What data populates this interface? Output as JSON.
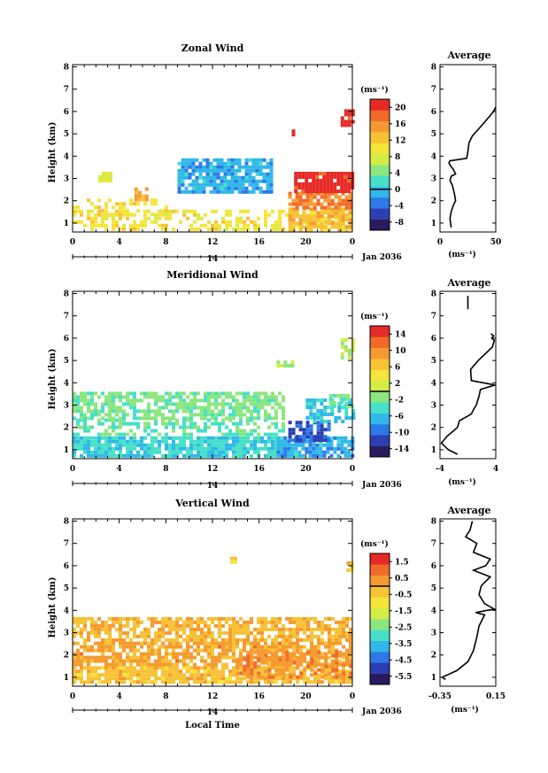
{
  "chart_data": [
    {
      "type": "heatmap",
      "title": "Zonal Wind",
      "ylabel": "Height (km)",
      "x_ticks": [
        "0",
        "4",
        "8",
        "12",
        "16",
        "20",
        "0"
      ],
      "y_ticks": [
        "1",
        "2",
        "3",
        "4",
        "5",
        "6",
        "7",
        "8"
      ],
      "xlim": [
        0,
        24
      ],
      "ylim": [
        0.6,
        8.1
      ],
      "date_bar": {
        "day": "14",
        "label": "Jan 2036"
      },
      "colorbar": {
        "unit": "(ms⁻¹)",
        "ticks": [
          "20",
          "16",
          "12",
          "8",
          "4",
          "0",
          "-4",
          "-8"
        ],
        "range": [
          -10,
          22
        ]
      },
      "cells": [
        {
          "x0": 0,
          "x1": 24,
          "y0": 0.7,
          "y1": 1.6,
          "v": 10,
          "density": 0.55
        },
        {
          "x0": 0,
          "x1": 8,
          "y0": 1.4,
          "y1": 2.1,
          "v": 11,
          "density": 0.35
        },
        {
          "x0": 5,
          "x1": 6.5,
          "y0": 2.0,
          "y1": 2.6,
          "v": 14,
          "density": 0.6
        },
        {
          "x0": 2.2,
          "x1": 3.4,
          "y0": 2.9,
          "y1": 3.3,
          "v": 8,
          "density": 0.8
        },
        {
          "x0": 9,
          "x1": 17,
          "y0": 2.4,
          "y1": 3.9,
          "v": -1,
          "density": 0.85
        },
        {
          "x0": 18.5,
          "x1": 24,
          "y0": 0.7,
          "y1": 1.7,
          "v": 13,
          "density": 0.8
        },
        {
          "x0": 18.5,
          "x1": 24,
          "y0": 1.7,
          "y1": 2.4,
          "v": 17,
          "density": 0.85
        },
        {
          "x0": 19,
          "x1": 24,
          "y0": 2.4,
          "y1": 3.3,
          "v": 21,
          "density": 0.9
        },
        {
          "x0": 23,
          "x1": 24,
          "y0": 5.4,
          "y1": 6.1,
          "v": 21,
          "density": 0.8
        },
        {
          "x0": 18.8,
          "x1": 19.1,
          "y0": 5.0,
          "y1": 5.2,
          "v": 21,
          "density": 1.0
        }
      ],
      "profile": {
        "title": "Average",
        "xlabel": "(ms⁻¹)",
        "x_ticks": [
          "0",
          "50"
        ],
        "xlim": [
          0,
          50
        ],
        "x": [
          10,
          9,
          10,
          12,
          14,
          13,
          11,
          9,
          10,
          14,
          12,
          9,
          8,
          9,
          10,
          24,
          25,
          26,
          29,
          36,
          43,
          48,
          50
        ],
        "y": [
          0.8,
          1.2,
          1.5,
          1.8,
          2.0,
          2.3,
          2.7,
          2.9,
          3.1,
          3.2,
          3.4,
          3.6,
          3.7,
          3.8,
          3.8,
          3.9,
          4.2,
          4.6,
          4.9,
          5.3,
          5.7,
          6.0,
          6.2
        ]
      }
    },
    {
      "type": "heatmap",
      "title": "Meridional Wind",
      "ylabel": "Height (km)",
      "x_ticks": [
        "0",
        "4",
        "8",
        "12",
        "16",
        "20",
        "0"
      ],
      "y_ticks": [
        "1",
        "2",
        "3",
        "4",
        "5",
        "6",
        "7",
        "8"
      ],
      "xlim": [
        0,
        24
      ],
      "ylim": [
        0.6,
        8.1
      ],
      "date_bar": {
        "day": "14",
        "label": "Jan 2036"
      },
      "colorbar": {
        "unit": "(ms⁻¹)",
        "ticks": [
          "14",
          "10",
          "6",
          "2",
          "-2",
          "-6",
          "-10",
          "-14"
        ],
        "range": [
          -16,
          16
        ]
      },
      "cells": [
        {
          "x0": 0,
          "x1": 18,
          "y0": 0.7,
          "y1": 1.6,
          "v": -5,
          "density": 0.85
        },
        {
          "x0": 0,
          "x1": 18,
          "y0": 1.6,
          "y1": 2.4,
          "v": -3,
          "density": 0.45
        },
        {
          "x0": 0,
          "x1": 18,
          "y0": 2.4,
          "y1": 3.6,
          "v": -2,
          "density": 0.7
        },
        {
          "x0": 17.5,
          "x1": 24,
          "y0": 0.7,
          "y1": 1.6,
          "v": -7,
          "density": 0.8
        },
        {
          "x0": 18.5,
          "x1": 22,
          "y0": 1.4,
          "y1": 2.3,
          "v": -11,
          "density": 0.8
        },
        {
          "x0": 20,
          "x1": 24,
          "y0": 2.2,
          "y1": 3.3,
          "v": -6,
          "density": 0.6
        },
        {
          "x0": 22,
          "x1": 24,
          "y0": 3.0,
          "y1": 3.5,
          "v": -3,
          "density": 0.5
        },
        {
          "x0": 17.5,
          "x1": 18.8,
          "y0": 4.8,
          "y1": 5.0,
          "v": 0,
          "density": 0.8
        },
        {
          "x0": 23,
          "x1": 24,
          "y0": 5.1,
          "y1": 6.0,
          "v": 1,
          "density": 0.6
        }
      ],
      "profile": {
        "title": "Average",
        "xlabel": "(ms⁻¹)",
        "x_ticks": [
          "-4",
          "4"
        ],
        "xlim": [
          -4,
          4
        ],
        "x": [
          -1.5,
          -2.8,
          -3.8,
          -3,
          -1.5,
          -1.2,
          0.5,
          0.8,
          1.2,
          1.6,
          1.8,
          3.9,
          0.5,
          0.4,
          1.5,
          2.5,
          3.5,
          3.8,
          3.4,
          3.7,
          3.3
        ],
        "y": [
          0.8,
          1.0,
          1.3,
          1.6,
          2.0,
          2.3,
          2.6,
          2.8,
          3.0,
          3.4,
          3.7,
          3.9,
          4.1,
          4.6,
          5.0,
          5.3,
          5.6,
          5.9,
          6.0,
          6.1,
          6.2
        ],
        "y_extra": [
          {
            "x": 0.0,
            "y0": 7.3,
            "y1": 7.9
          }
        ]
      }
    },
    {
      "type": "heatmap",
      "title": "Vertical Wind",
      "xlabel": "Local Time",
      "ylabel": "Height (km)",
      "x_ticks": [
        "0",
        "4",
        "8",
        "12",
        "16",
        "20",
        "0"
      ],
      "y_ticks": [
        "1",
        "2",
        "3",
        "4",
        "5",
        "6",
        "7",
        "8"
      ],
      "xlim": [
        0,
        24
      ],
      "ylim": [
        0.6,
        8.1
      ],
      "date_bar": {
        "day": "14",
        "label": "Jan 2036"
      },
      "colorbar": {
        "unit": "(ms⁻¹)",
        "ticks": [
          "1.5",
          "0.5",
          "-0.5",
          "-1.5",
          "-2.5",
          "-3.5",
          "-4.5",
          "-5.5"
        ],
        "range": [
          -6,
          2
        ]
      },
      "cells": [
        {
          "x0": 0,
          "x1": 24,
          "y0": 0.7,
          "y1": 1.5,
          "v": -0.3,
          "density": 0.85
        },
        {
          "x0": 0,
          "x1": 24,
          "y0": 1.5,
          "y1": 2.6,
          "v": 0.2,
          "density": 0.75
        },
        {
          "x0": 0,
          "x1": 24,
          "y0": 2.6,
          "y1": 3.7,
          "v": -0.1,
          "density": 0.7
        },
        {
          "x0": 14,
          "x1": 24,
          "y0": 1.0,
          "y1": 2.2,
          "v": 0.5,
          "density": 0.5
        },
        {
          "x0": 13.5,
          "x1": 14.0,
          "y0": 6.2,
          "y1": 6.4,
          "v": -0.3,
          "density": 1.0
        },
        {
          "x0": 23.5,
          "x1": 24,
          "y0": 5.4,
          "y1": 6.2,
          "v": -0.2,
          "density": 0.7
        }
      ],
      "profile": {
        "title": "Average",
        "xlabel": "(ms⁻¹)",
        "x_ticks": [
          "-0.35",
          "0.15"
        ],
        "xlim": [
          -0.35,
          0.15
        ],
        "x": [
          -0.3,
          -0.33,
          -0.2,
          -0.1,
          -0.05,
          -0.02,
          0.0,
          0.05,
          -0.03,
          0.07,
          0.14,
          0.05,
          0.0,
          0.02,
          0.1,
          -0.05,
          0.06,
          0.1,
          -0.05,
          -0.02,
          -0.12,
          -0.08,
          -0.06
        ],
        "y": [
          0.9,
          1.0,
          1.3,
          1.7,
          2.2,
          2.8,
          3.3,
          3.8,
          3.9,
          4.0,
          4.05,
          4.3,
          4.7,
          5.1,
          5.5,
          5.8,
          6.0,
          6.3,
          6.6,
          7.0,
          7.3,
          7.6,
          8.0
        ]
      }
    }
  ],
  "colors": {
    "palette": [
      "#2a1a5e",
      "#2b3fb0",
      "#2f78e8",
      "#2fb8e8",
      "#46e0c8",
      "#8ce67e",
      "#d4ec46",
      "#f5e43a",
      "#f7c236",
      "#f59a30",
      "#f26a2a",
      "#e62a26"
    ]
  }
}
